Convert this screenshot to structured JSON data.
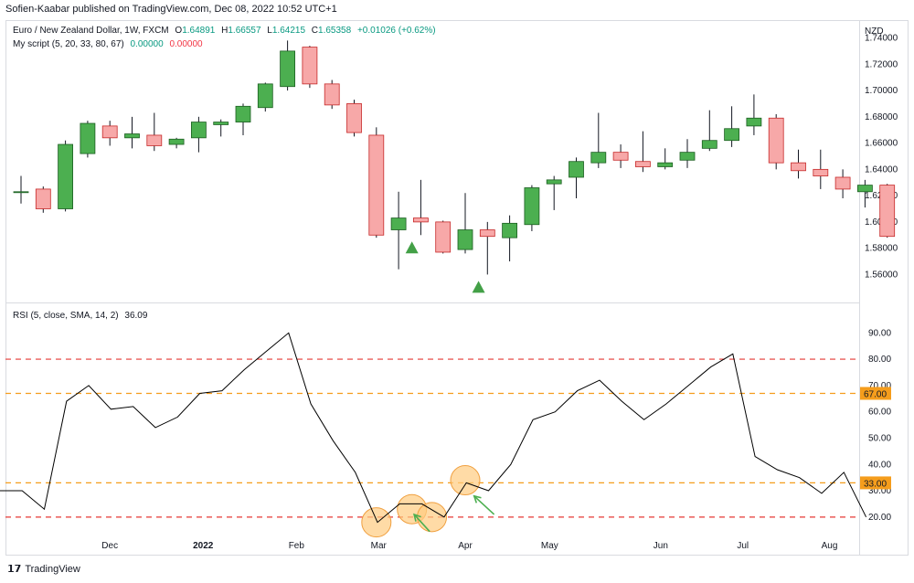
{
  "caption": "Sofien-Kaabar published on TradingView.com, Dec 08, 2022 10:52 UTC+1",
  "footer": {
    "logo_icon": "tradingview-logo-icon",
    "text": "TradingView"
  },
  "main_pane": {
    "symbol_title": "Euro / New Zealand Dollar, 1W, FXCM",
    "ohlc": [
      {
        "label": "O",
        "value": "1.64891"
      },
      {
        "label": "H",
        "value": "1.66557"
      },
      {
        "label": "L",
        "value": "1.64215"
      },
      {
        "label": "C",
        "value": "1.65358"
      }
    ],
    "change": "+0.01026 (+0.62%)",
    "script_label": "My script (5, 20, 33, 80, 67)",
    "script_val1": "0.00000",
    "script_val2": "0.00000",
    "currency": "NZD"
  },
  "rsi_pane": {
    "label": "RSI (5, close, SMA, 14, 2)",
    "value": "36.09"
  },
  "colors": {
    "up": "#4caf50",
    "down": "#f7a8a8",
    "up_border": "#1b5e20",
    "down_border": "#c62828",
    "rsi_line": "#000000",
    "red_level": "#e53935",
    "orange_level": "#f59d1c",
    "signal_triangle": "#43a047",
    "circle_fill": "#ffcc80",
    "arrow": "#4caf50"
  },
  "chart_data": [
    {
      "type": "candlestick",
      "ylim": [
        1.545,
        1.748
      ],
      "y_ticks": [
        "1.74000",
        "1.72000",
        "1.70000",
        "1.68000",
        "1.66000",
        "1.64000",
        "1.62000",
        "1.60000",
        "1.58000",
        "1.56000"
      ],
      "y_tick_values": [
        1.74,
        1.72,
        1.7,
        1.68,
        1.66,
        1.64,
        1.62,
        1.6,
        1.58,
        1.56
      ],
      "x_ticks": [
        "Dec",
        "2022",
        "Feb",
        "Mar",
        "Apr",
        "May",
        "Jun",
        "Jul",
        "Aug"
      ],
      "x_tick_index": [
        4.0,
        8.2,
        12.4,
        16.1,
        20.0,
        23.8,
        28.8,
        32.5,
        36.4
      ],
      "candles": [
        {
          "o": 1.623,
          "h": 1.635,
          "l": 1.614,
          "c": 1.623
        },
        {
          "o": 1.625,
          "h": 1.627,
          "l": 1.607,
          "c": 1.61
        },
        {
          "o": 1.61,
          "h": 1.662,
          "l": 1.608,
          "c": 1.659
        },
        {
          "o": 1.652,
          "h": 1.677,
          "l": 1.649,
          "c": 1.675
        },
        {
          "o": 1.673,
          "h": 1.677,
          "l": 1.658,
          "c": 1.664
        },
        {
          "o": 1.664,
          "h": 1.68,
          "l": 1.656,
          "c": 1.667
        },
        {
          "o": 1.666,
          "h": 1.683,
          "l": 1.654,
          "c": 1.658
        },
        {
          "o": 1.659,
          "h": 1.664,
          "l": 1.656,
          "c": 1.663
        },
        {
          "o": 1.664,
          "h": 1.68,
          "l": 1.653,
          "c": 1.676
        },
        {
          "o": 1.674,
          "h": 1.678,
          "l": 1.665,
          "c": 1.676
        },
        {
          "o": 1.676,
          "h": 1.69,
          "l": 1.666,
          "c": 1.688
        },
        {
          "o": 1.687,
          "h": 1.706,
          "l": 1.684,
          "c": 1.705
        },
        {
          "o": 1.703,
          "h": 1.738,
          "l": 1.7,
          "c": 1.73
        },
        {
          "o": 1.733,
          "h": 1.734,
          "l": 1.702,
          "c": 1.705
        },
        {
          "o": 1.705,
          "h": 1.708,
          "l": 1.686,
          "c": 1.689
        },
        {
          "o": 1.69,
          "h": 1.693,
          "l": 1.665,
          "c": 1.668
        },
        {
          "o": 1.666,
          "h": 1.672,
          "l": 1.588,
          "c": 1.59
        },
        {
          "o": 1.594,
          "h": 1.623,
          "l": 1.564,
          "c": 1.603
        },
        {
          "o": 1.603,
          "h": 1.632,
          "l": 1.59,
          "c": 1.6
        },
        {
          "o": 1.6,
          "h": 1.601,
          "l": 1.576,
          "c": 1.577
        },
        {
          "o": 1.579,
          "h": 1.622,
          "l": 1.576,
          "c": 1.594
        },
        {
          "o": 1.594,
          "h": 1.6,
          "l": 1.56,
          "c": 1.589
        },
        {
          "o": 1.588,
          "h": 1.605,
          "l": 1.57,
          "c": 1.599
        },
        {
          "o": 1.598,
          "h": 1.628,
          "l": 1.593,
          "c": 1.626
        },
        {
          "o": 1.629,
          "h": 1.635,
          "l": 1.609,
          "c": 1.632
        },
        {
          "o": 1.634,
          "h": 1.649,
          "l": 1.618,
          "c": 1.646
        },
        {
          "o": 1.645,
          "h": 1.683,
          "l": 1.641,
          "c": 1.653
        },
        {
          "o": 1.653,
          "h": 1.659,
          "l": 1.641,
          "c": 1.647
        },
        {
          "o": 1.646,
          "h": 1.669,
          "l": 1.638,
          "c": 1.642
        },
        {
          "o": 1.642,
          "h": 1.656,
          "l": 1.64,
          "c": 1.645
        },
        {
          "o": 1.647,
          "h": 1.663,
          "l": 1.641,
          "c": 1.653
        },
        {
          "o": 1.656,
          "h": 1.685,
          "l": 1.654,
          "c": 1.662
        },
        {
          "o": 1.662,
          "h": 1.688,
          "l": 1.657,
          "c": 1.671
        },
        {
          "o": 1.673,
          "h": 1.697,
          "l": 1.666,
          "c": 1.679
        },
        {
          "o": 1.679,
          "h": 1.682,
          "l": 1.64,
          "c": 1.645
        },
        {
          "o": 1.645,
          "h": 1.655,
          "l": 1.633,
          "c": 1.639
        },
        {
          "o": 1.64,
          "h": 1.655,
          "l": 1.625,
          "c": 1.635
        },
        {
          "o": 1.634,
          "h": 1.64,
          "l": 1.618,
          "c": 1.625
        },
        {
          "o": 1.623,
          "h": 1.632,
          "l": 1.611,
          "c": 1.628
        },
        {
          "o": 1.628,
          "h": 1.629,
          "l": 1.588,
          "c": 1.589
        }
      ],
      "signals": [
        17.6,
        20.6
      ]
    },
    {
      "type": "line",
      "title": "RSI (5, close, SMA, 14, 2)",
      "ylim": [
        13,
        96
      ],
      "y_ticks": [
        "90.00",
        "80.00",
        "70.00",
        "60.00",
        "50.00",
        "40.00",
        "30.00",
        "20.00"
      ],
      "y_tick_values": [
        90,
        80,
        70,
        60,
        50,
        40,
        30,
        20
      ],
      "values": [
        30,
        30,
        23,
        64,
        70,
        61,
        62,
        54,
        58,
        67,
        68,
        76,
        83,
        90,
        63,
        49,
        37,
        18,
        25,
        25,
        20,
        33,
        30,
        40,
        57,
        60,
        68,
        72,
        64,
        57,
        63,
        70,
        77,
        82,
        43,
        38,
        35,
        29,
        37,
        20
      ],
      "levels": [
        {
          "value": 80,
          "color": "red"
        },
        {
          "value": 67,
          "color": "orange",
          "label": "67.00"
        },
        {
          "value": 33,
          "color": "orange",
          "label": "33.00"
        },
        {
          "value": 20,
          "color": "red"
        }
      ],
      "highlighted_points": [
        {
          "index": 16.0,
          "value": 18
        },
        {
          "index": 17.6,
          "value": 23
        },
        {
          "index": 18.5,
          "value": 20
        },
        {
          "index": 20.0,
          "value": 34
        }
      ]
    }
  ]
}
